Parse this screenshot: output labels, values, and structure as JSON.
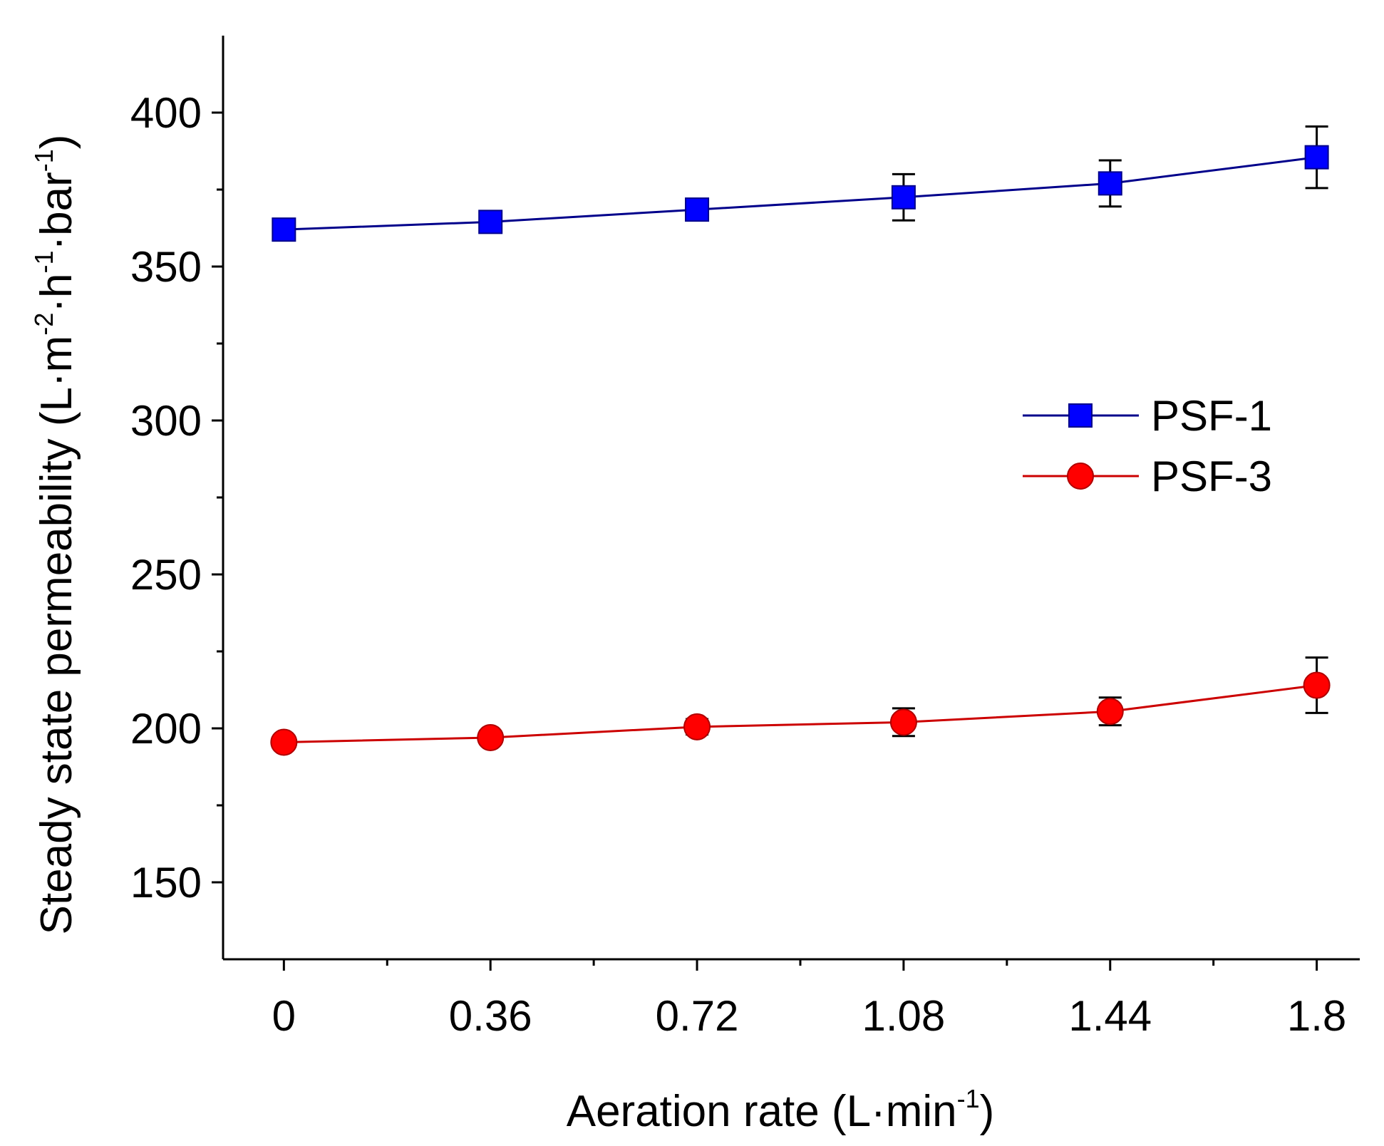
{
  "chart_data": {
    "type": "line",
    "title": "",
    "xlabel": "Aeration rate (L·min⁻¹)",
    "ylabel": "Steady state permeability (L·m⁻²·h⁻¹·bar⁻¹)",
    "xlabel_parts": {
      "main": "Aeration rate (L·min",
      "sup": "-1",
      "close": ")"
    },
    "ylabel_parts": [
      {
        "t": "Steady state permeability (L·m",
        "sup": false
      },
      {
        "t": "-2",
        "sup": true
      },
      {
        "t": "·h",
        "sup": false
      },
      {
        "t": "-1",
        "sup": true
      },
      {
        "t": "·bar",
        "sup": false
      },
      {
        "t": "-1",
        "sup": true
      },
      {
        "t": ")",
        "sup": false
      }
    ],
    "x": [
      0,
      0.36,
      0.72,
      1.08,
      1.44,
      1.8
    ],
    "x_tick_labels": [
      "0",
      "0.36",
      "0.72",
      "1.08",
      "1.44",
      "1.8"
    ],
    "x_minor_ticks": [
      0.18,
      0.54,
      0.9,
      1.26,
      1.62
    ],
    "xlim": [
      -0.106,
      1.875
    ],
    "ylim": [
      125,
      425
    ],
    "y_ticks": [
      150,
      200,
      250,
      300,
      350,
      400
    ],
    "y_tick_labels": [
      "150",
      "200",
      "250",
      "300",
      "350",
      "400"
    ],
    "y_minor_ticks": [
      175,
      225,
      275,
      325,
      375
    ],
    "grid": false,
    "legend_position": "center-right",
    "series": [
      {
        "name": "PSF-1",
        "marker": "square",
        "color": "#0000ff",
        "line_color": "#00008b",
        "values": [
          362,
          364.5,
          368.5,
          372.5,
          377,
          385.5
        ],
        "errors": [
          2,
          3,
          2.5,
          7.5,
          7.5,
          10
        ]
      },
      {
        "name": "PSF-3",
        "marker": "circle",
        "color": "#ff0000",
        "line_color": "#cc0000",
        "values": [
          195.5,
          197,
          200.5,
          202,
          205.5,
          214
        ],
        "errors": [
          1.5,
          2,
          2.5,
          4.5,
          4.5,
          9
        ]
      }
    ]
  }
}
